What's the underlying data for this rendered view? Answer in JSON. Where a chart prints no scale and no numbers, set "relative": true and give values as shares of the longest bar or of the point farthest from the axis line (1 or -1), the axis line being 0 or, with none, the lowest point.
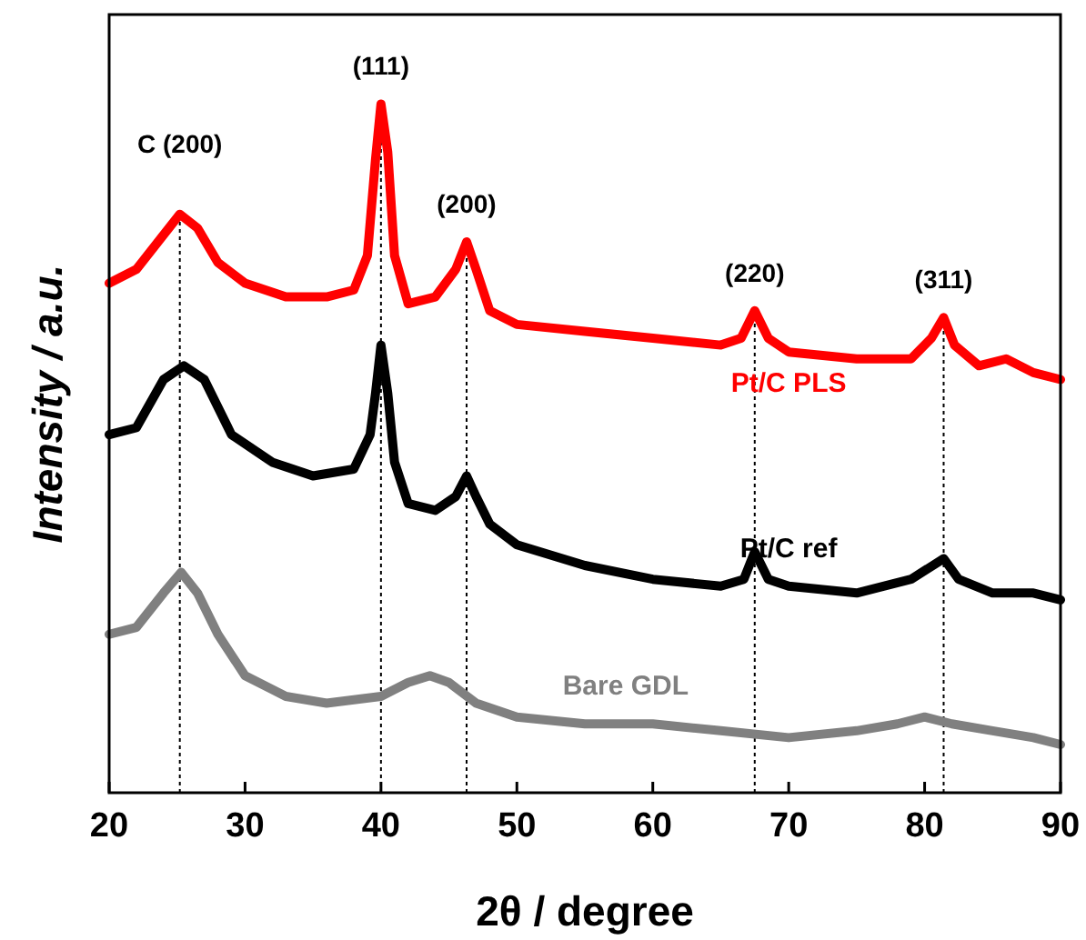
{
  "chart_data": {
    "type": "line",
    "relative": true,
    "xlabel": "2θ / degree",
    "ylabel": "Intensity / a.u.",
    "xlim": [
      20,
      90
    ],
    "xticks": [
      20,
      30,
      40,
      50,
      60,
      70,
      80,
      90
    ],
    "grid": false,
    "marker": "none",
    "line_style": "solid",
    "series": [
      {
        "name": "Pt/C PLS",
        "color": "#ff0000",
        "x": [
          20,
          22,
          24,
          25.2,
          26.5,
          28,
          30,
          33,
          36,
          38,
          39,
          39.6,
          40,
          40.5,
          41,
          42,
          44,
          45.5,
          46.3,
          47,
          48,
          50,
          55,
          60,
          65,
          66.5,
          67.5,
          68.5,
          70,
          75,
          79,
          80.5,
          81.4,
          82.2,
          84,
          86,
          88,
          90
        ],
        "values": [
          0.74,
          0.76,
          0.81,
          0.84,
          0.82,
          0.77,
          0.74,
          0.72,
          0.72,
          0.73,
          0.78,
          0.92,
          1,
          0.93,
          0.78,
          0.71,
          0.72,
          0.76,
          0.8,
          0.76,
          0.7,
          0.68,
          0.67,
          0.66,
          0.65,
          0.66,
          0.7,
          0.66,
          0.64,
          0.63,
          0.63,
          0.66,
          0.69,
          0.65,
          0.62,
          0.63,
          0.61,
          0.6
        ]
      },
      {
        "name": "Pt/C ref",
        "color": "#000000",
        "x": [
          20,
          22,
          24,
          25.5,
          27,
          29,
          32,
          35,
          38,
          39.2,
          39.6,
          40,
          40.5,
          41,
          42,
          44,
          45.5,
          46.3,
          47,
          48,
          50,
          55,
          60,
          65,
          66.7,
          67.5,
          68.5,
          70,
          75,
          79,
          81.4,
          82.5,
          85,
          88,
          90
        ],
        "values": [
          0.52,
          0.53,
          0.6,
          0.62,
          0.6,
          0.52,
          0.48,
          0.46,
          0.47,
          0.52,
          0.58,
          0.65,
          0.58,
          0.48,
          0.42,
          0.41,
          0.43,
          0.46,
          0.43,
          0.39,
          0.36,
          0.33,
          0.31,
          0.3,
          0.31,
          0.35,
          0.31,
          0.3,
          0.29,
          0.31,
          0.34,
          0.31,
          0.29,
          0.29,
          0.28
        ]
      },
      {
        "name": "Bare GDL",
        "color": "#808080",
        "x": [
          20,
          22,
          24,
          25.3,
          26.5,
          28,
          30,
          33,
          36,
          40,
          42,
          43.6,
          45,
          47,
          50,
          55,
          60,
          65,
          70,
          75,
          78,
          80,
          82,
          85,
          88,
          90
        ],
        "values": [
          0.23,
          0.24,
          0.29,
          0.32,
          0.29,
          0.23,
          0.17,
          0.14,
          0.13,
          0.14,
          0.16,
          0.17,
          0.16,
          0.13,
          0.11,
          0.1,
          0.1,
          0.09,
          0.08,
          0.09,
          0.1,
          0.11,
          0.1,
          0.09,
          0.08,
          0.07
        ]
      }
    ],
    "ref_lines": [
      {
        "axis": "x",
        "value": 25.2,
        "line_style": "dotted"
      },
      {
        "axis": "x",
        "value": 40,
        "line_style": "dotted"
      },
      {
        "axis": "x",
        "value": 46.3,
        "line_style": "dotted"
      },
      {
        "axis": "x",
        "value": 67.5,
        "line_style": "dotted"
      },
      {
        "axis": "x",
        "value": 81.4,
        "line_style": "dotted"
      }
    ],
    "annotations": [
      "C (200)",
      "(111)",
      "(200)",
      "(220)",
      "(311)"
    ]
  }
}
